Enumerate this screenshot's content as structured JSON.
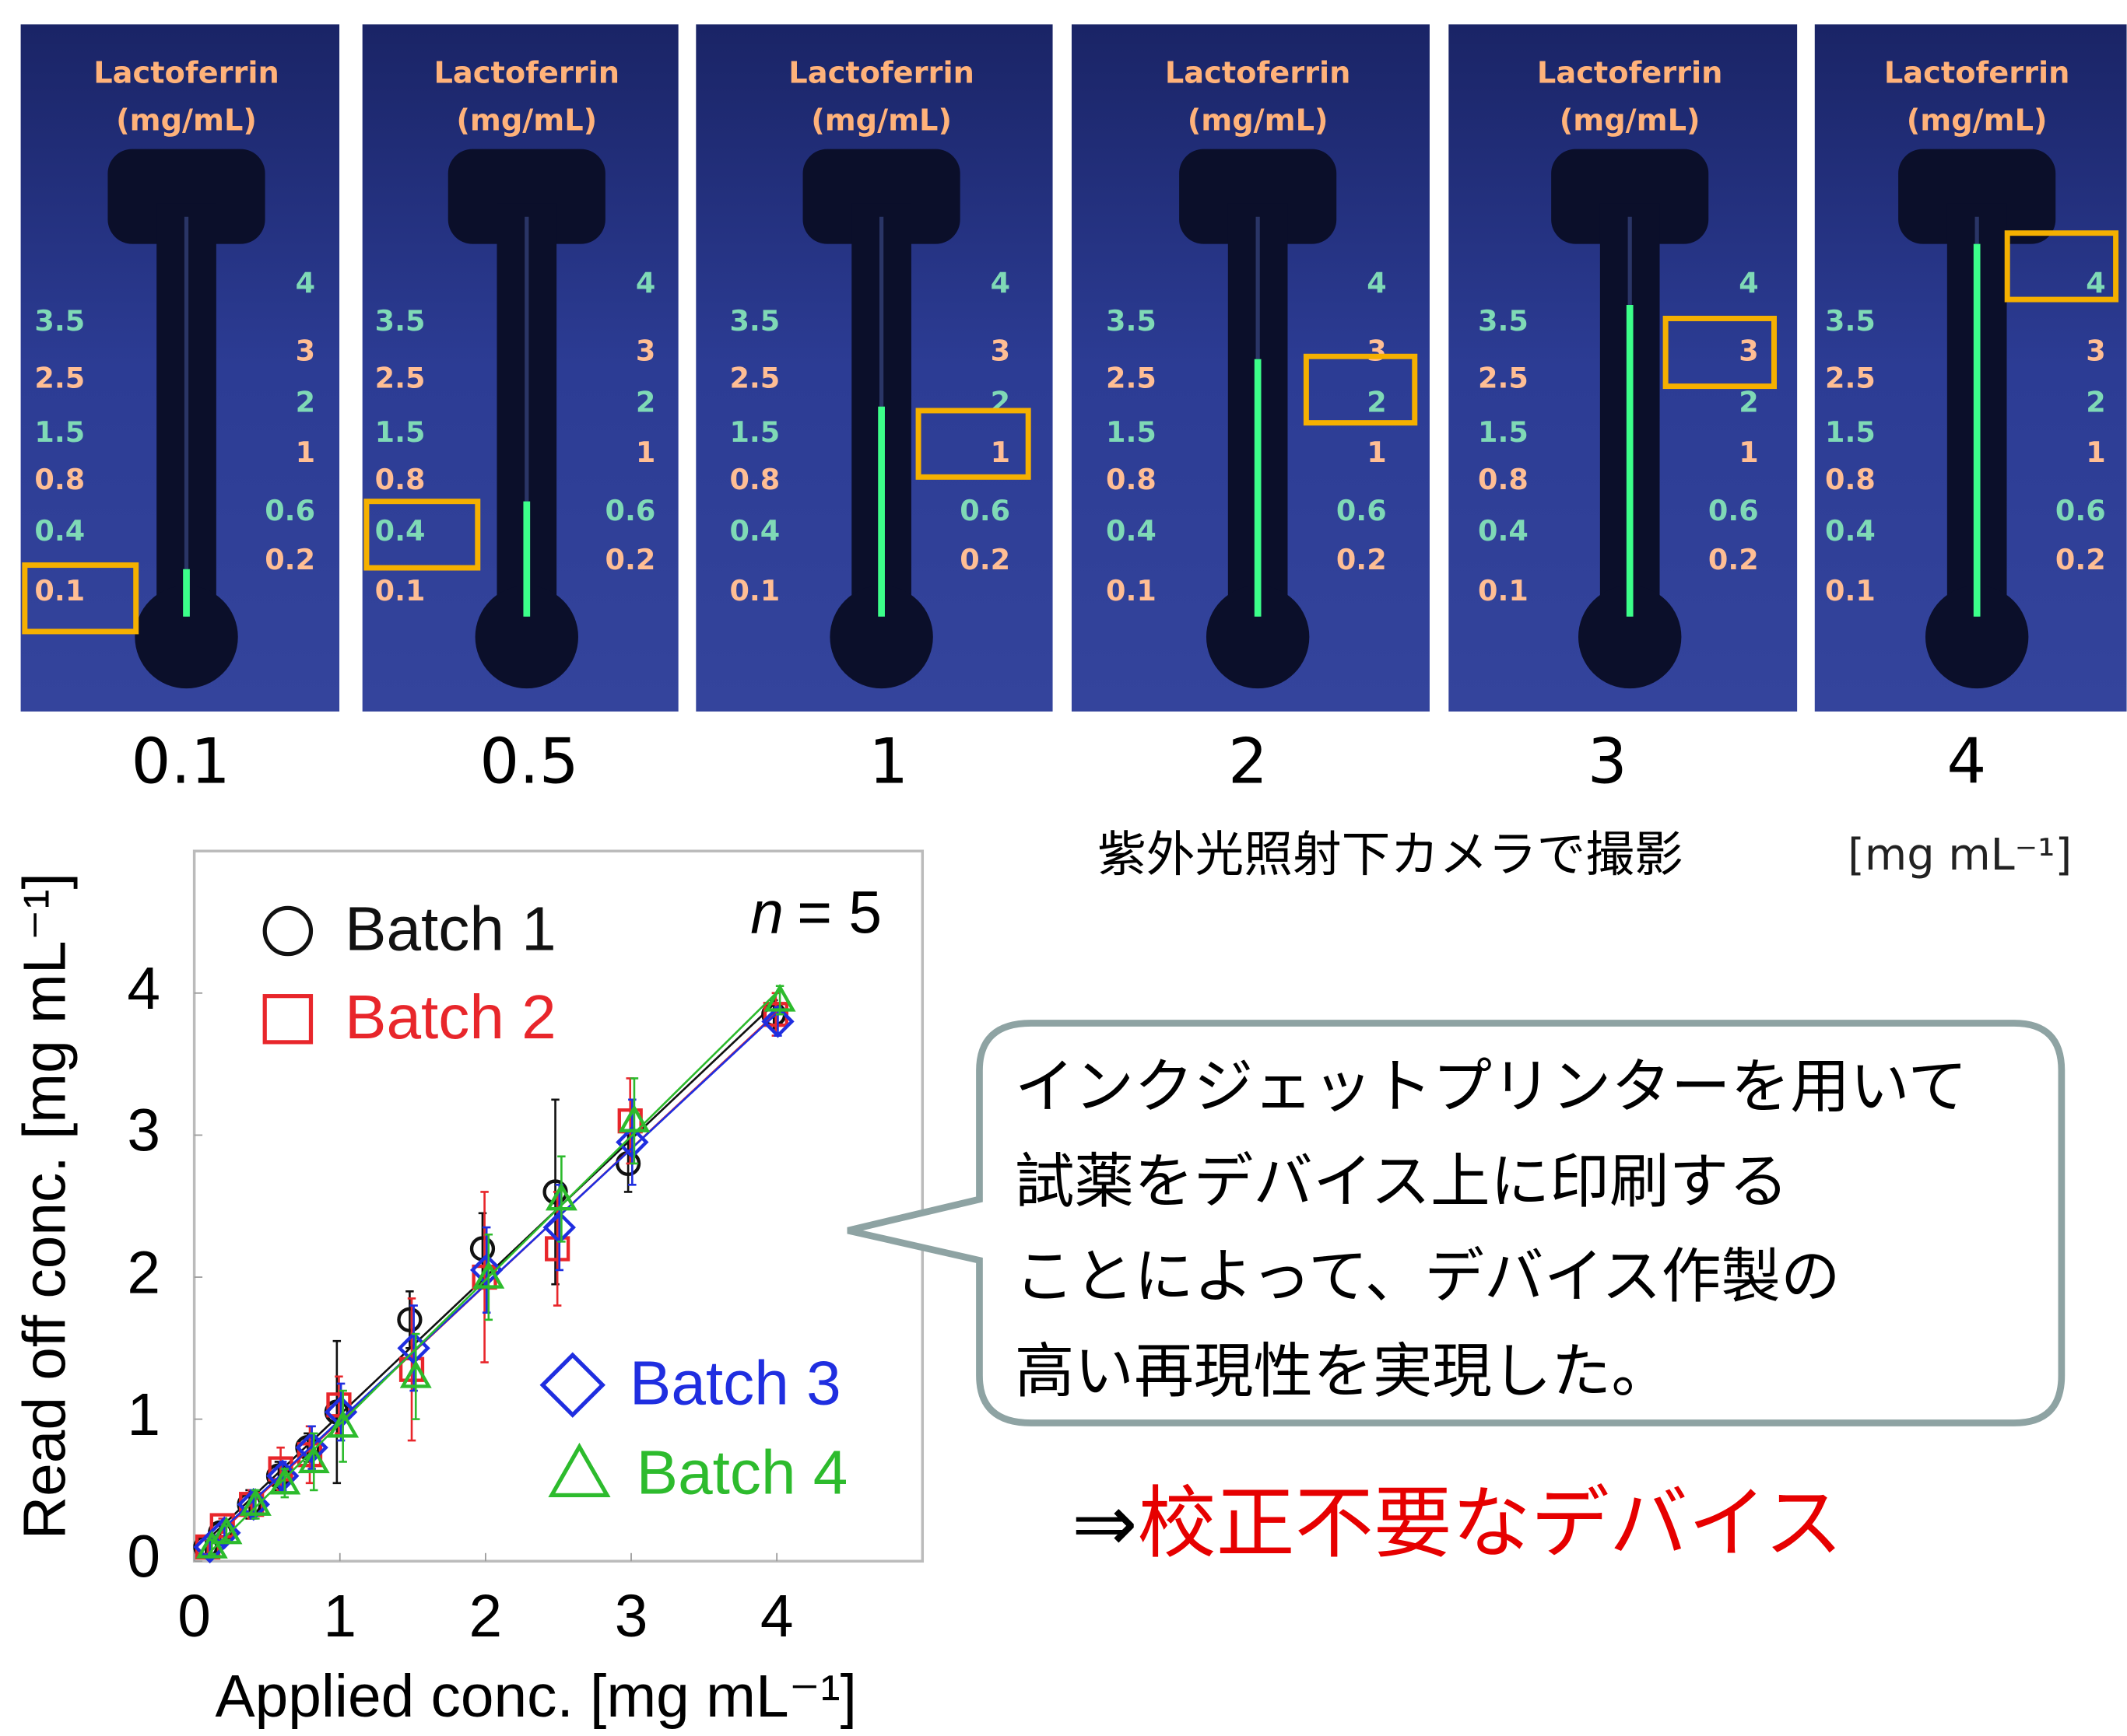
{
  "photos": {
    "device": {
      "title": [
        "Lactoferrin",
        "(mg/mL)"
      ],
      "left_scale": [
        "3.5",
        "2.5",
        "1.5",
        "0.8",
        "0.4",
        "0.1"
      ],
      "right_scale": [
        "4",
        "3",
        "2",
        "1",
        "0.6",
        "0.2"
      ]
    },
    "labels": [
      "0.1",
      "0.5",
      "1",
      "2",
      "3",
      "4"
    ],
    "caption": "紫外光照射下カメラで撮影",
    "unit": "[mg mL⁻¹]"
  },
  "chart_data": {
    "type": "scatter",
    "xlabel": "Applied conc. [mg mL⁻¹]",
    "ylabel": "Read off conc. [mg mL⁻¹]",
    "annotation": {
      "variable": "n",
      "text": "= 5"
    },
    "x": [
      0.1,
      0.2,
      0.4,
      0.6,
      0.8,
      1,
      1.5,
      2,
      2.5,
      3,
      4
    ],
    "series": [
      {
        "name": "Batch 1",
        "color": "#111111",
        "marker": "circle",
        "values": [
          0.1,
          0.2,
          0.4,
          0.6,
          0.8,
          1.05,
          1.7,
          2.2,
          2.6,
          2.8,
          3.85
        ],
        "errors": [
          0.05,
          0.05,
          0.1,
          0.1,
          0.1,
          0.5,
          0.2,
          0.25,
          0.65,
          0.2,
          0.1
        ]
      },
      {
        "name": "Batch 2",
        "color": "#e8262b",
        "marker": "square",
        "values": [
          0.1,
          0.25,
          0.4,
          0.65,
          0.75,
          1.1,
          1.35,
          2.0,
          2.2,
          3.1,
          3.85
        ],
        "errors": [
          0.05,
          0.05,
          0.1,
          0.15,
          0.2,
          0.2,
          0.5,
          0.6,
          0.4,
          0.3,
          0.15
        ]
      },
      {
        "name": "Batch 3",
        "color": "#1f2ee0",
        "marker": "diamond",
        "values": [
          0.1,
          0.2,
          0.4,
          0.6,
          0.8,
          1.05,
          1.5,
          2.05,
          2.35,
          2.95,
          3.8
        ],
        "errors": [
          0.05,
          0.05,
          0.1,
          0.1,
          0.15,
          0.2,
          0.3,
          0.3,
          0.3,
          0.3,
          0.1
        ]
      },
      {
        "name": "Batch 4",
        "color": "#2dbb2d",
        "marker": "triangle",
        "values": [
          0.1,
          0.2,
          0.4,
          0.55,
          0.7,
          0.95,
          1.3,
          2.0,
          2.55,
          3.1,
          3.95
        ],
        "errors": [
          0.05,
          0.05,
          0.1,
          0.1,
          0.2,
          0.25,
          0.3,
          0.3,
          0.3,
          0.3,
          0.1
        ]
      }
    ],
    "xlim": [
      0,
      5
    ],
    "ylim": [
      0,
      5
    ],
    "xticks": [
      0,
      1,
      2,
      3,
      4
    ],
    "yticks": [
      0,
      1,
      2,
      3,
      4
    ],
    "grid": false
  },
  "callout": {
    "lines": [
      "インクジェットプリンターを用いて",
      "試薬をデバイス上に印刷する",
      "ことによって、デバイス作製の",
      "高い再現性を実現した。"
    ]
  },
  "conclusion": {
    "arrow": "⇒",
    "text": "校正不要なデバイス"
  }
}
